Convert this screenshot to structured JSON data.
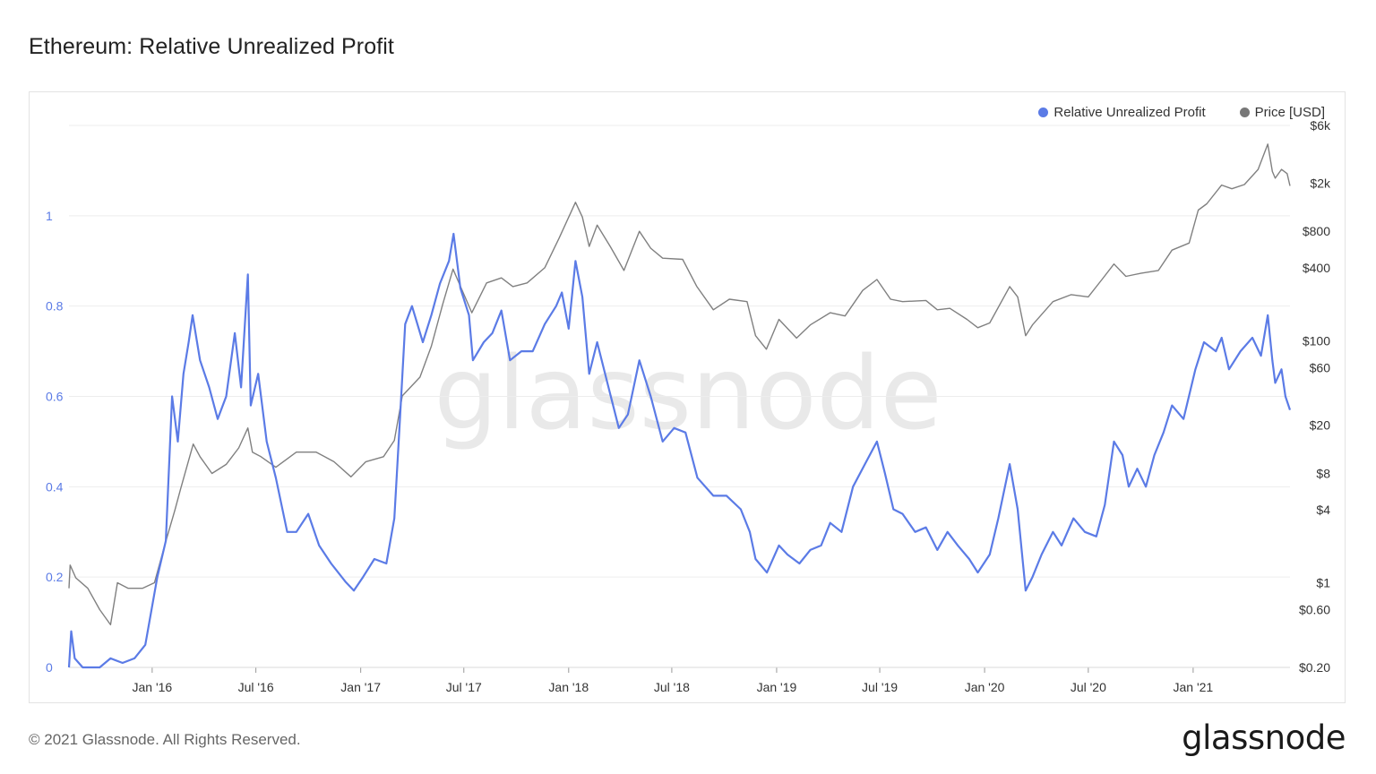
{
  "header": {
    "title": "Ethereum: Relative Unrealized Profit"
  },
  "footer": {
    "copyright": "© 2021 Glassnode. All Rights Reserved.",
    "brand": "glassnode"
  },
  "watermark": "glassnode",
  "colors": {
    "rup": "#5b7be6",
    "price": "#808080",
    "axis_left": "#5b7be6",
    "grid": "#ededed"
  },
  "chart_data": {
    "type": "line",
    "title": "Ethereum: Relative Unrealized Profit",
    "legend_position": "top-right",
    "grid": true,
    "x_ticks": [
      "Jan '16",
      "Jul '16",
      "Jan '17",
      "Jul '17",
      "Jan '18",
      "Jul '18",
      "Jan '19",
      "Jul '19",
      "Jan '20",
      "Jul '20",
      "Jan '21"
    ],
    "x_range": [
      "2015-08-08",
      "2021-06-20"
    ],
    "y_left": {
      "ticks": [
        "0",
        "0.2",
        "0.4",
        "0.6",
        "0.8",
        "1"
      ],
      "range": [
        0,
        1.2
      ]
    },
    "y_right": {
      "scale": "log",
      "ticks": [
        "$0.20",
        "$0.60",
        "$1",
        "$4",
        "$8",
        "$20",
        "$60",
        "$100",
        "$400",
        "$800",
        "$2k",
        "$6k"
      ],
      "range": [
        0.2,
        6000
      ]
    },
    "series": [
      {
        "name": "Relative Unrealized Profit",
        "axis": "left",
        "points": [
          [
            "2015-08-08",
            0.0
          ],
          [
            "2015-08-12",
            0.08
          ],
          [
            "2015-08-18",
            0.02
          ],
          [
            "2015-09-01",
            0.0
          ],
          [
            "2015-10-01",
            0.0
          ],
          [
            "2015-10-20",
            0.02
          ],
          [
            "2015-11-10",
            0.01
          ],
          [
            "2015-12-01",
            0.02
          ],
          [
            "2015-12-20",
            0.05
          ],
          [
            "2016-01-10",
            0.2
          ],
          [
            "2016-01-25",
            0.28
          ],
          [
            "2016-02-05",
            0.6
          ],
          [
            "2016-02-15",
            0.5
          ],
          [
            "2016-02-25",
            0.65
          ],
          [
            "2016-03-05",
            0.72
          ],
          [
            "2016-03-12",
            0.78
          ],
          [
            "2016-03-25",
            0.68
          ],
          [
            "2016-04-10",
            0.62
          ],
          [
            "2016-04-25",
            0.55
          ],
          [
            "2016-05-10",
            0.6
          ],
          [
            "2016-05-25",
            0.74
          ],
          [
            "2016-06-05",
            0.62
          ],
          [
            "2016-06-17",
            0.87
          ],
          [
            "2016-06-22",
            0.58
          ],
          [
            "2016-07-05",
            0.65
          ],
          [
            "2016-07-20",
            0.5
          ],
          [
            "2016-08-05",
            0.42
          ],
          [
            "2016-08-25",
            0.3
          ],
          [
            "2016-09-10",
            0.3
          ],
          [
            "2016-10-01",
            0.34
          ],
          [
            "2016-10-20",
            0.27
          ],
          [
            "2016-11-10",
            0.23
          ],
          [
            "2016-12-05",
            0.19
          ],
          [
            "2016-12-20",
            0.17
          ],
          [
            "2017-01-05",
            0.2
          ],
          [
            "2017-01-25",
            0.24
          ],
          [
            "2017-02-15",
            0.23
          ],
          [
            "2017-03-01",
            0.33
          ],
          [
            "2017-03-10",
            0.53
          ],
          [
            "2017-03-20",
            0.76
          ],
          [
            "2017-04-01",
            0.8
          ],
          [
            "2017-04-20",
            0.72
          ],
          [
            "2017-05-05",
            0.78
          ],
          [
            "2017-05-20",
            0.85
          ],
          [
            "2017-06-05",
            0.9
          ],
          [
            "2017-06-13",
            0.96
          ],
          [
            "2017-06-25",
            0.84
          ],
          [
            "2017-07-10",
            0.78
          ],
          [
            "2017-07-17",
            0.68
          ],
          [
            "2017-08-05",
            0.72
          ],
          [
            "2017-08-20",
            0.74
          ],
          [
            "2017-09-05",
            0.79
          ],
          [
            "2017-09-20",
            0.68
          ],
          [
            "2017-10-10",
            0.7
          ],
          [
            "2017-10-30",
            0.7
          ],
          [
            "2017-11-20",
            0.76
          ],
          [
            "2017-12-10",
            0.8
          ],
          [
            "2017-12-20",
            0.83
          ],
          [
            "2018-01-01",
            0.75
          ],
          [
            "2018-01-13",
            0.9
          ],
          [
            "2018-01-25",
            0.82
          ],
          [
            "2018-02-06",
            0.65
          ],
          [
            "2018-02-20",
            0.72
          ],
          [
            "2018-03-10",
            0.63
          ],
          [
            "2018-03-30",
            0.53
          ],
          [
            "2018-04-15",
            0.56
          ],
          [
            "2018-05-05",
            0.68
          ],
          [
            "2018-05-25",
            0.6
          ],
          [
            "2018-06-15",
            0.5
          ],
          [
            "2018-07-05",
            0.53
          ],
          [
            "2018-07-25",
            0.52
          ],
          [
            "2018-08-15",
            0.42
          ],
          [
            "2018-09-12",
            0.38
          ],
          [
            "2018-10-05",
            0.38
          ],
          [
            "2018-10-30",
            0.35
          ],
          [
            "2018-11-15",
            0.3
          ],
          [
            "2018-11-25",
            0.24
          ],
          [
            "2018-12-15",
            0.21
          ],
          [
            "2019-01-05",
            0.27
          ],
          [
            "2019-01-20",
            0.25
          ],
          [
            "2019-02-10",
            0.23
          ],
          [
            "2019-03-01",
            0.26
          ],
          [
            "2019-03-20",
            0.27
          ],
          [
            "2019-04-05",
            0.32
          ],
          [
            "2019-04-25",
            0.3
          ],
          [
            "2019-05-15",
            0.4
          ],
          [
            "2019-06-05",
            0.45
          ],
          [
            "2019-06-26",
            0.5
          ],
          [
            "2019-07-10",
            0.43
          ],
          [
            "2019-07-25",
            0.35
          ],
          [
            "2019-08-10",
            0.34
          ],
          [
            "2019-09-01",
            0.3
          ],
          [
            "2019-09-20",
            0.31
          ],
          [
            "2019-10-10",
            0.26
          ],
          [
            "2019-10-28",
            0.3
          ],
          [
            "2019-11-15",
            0.27
          ],
          [
            "2019-12-05",
            0.24
          ],
          [
            "2019-12-20",
            0.21
          ],
          [
            "2020-01-10",
            0.25
          ],
          [
            "2020-01-25",
            0.33
          ],
          [
            "2020-02-14",
            0.45
          ],
          [
            "2020-02-28",
            0.35
          ],
          [
            "2020-03-13",
            0.17
          ],
          [
            "2020-03-25",
            0.2
          ],
          [
            "2020-04-10",
            0.25
          ],
          [
            "2020-04-30",
            0.3
          ],
          [
            "2020-05-15",
            0.27
          ],
          [
            "2020-06-05",
            0.33
          ],
          [
            "2020-06-25",
            0.3
          ],
          [
            "2020-07-15",
            0.29
          ],
          [
            "2020-07-30",
            0.36
          ],
          [
            "2020-08-15",
            0.5
          ],
          [
            "2020-08-30",
            0.47
          ],
          [
            "2020-09-10",
            0.4
          ],
          [
            "2020-09-25",
            0.44
          ],
          [
            "2020-10-10",
            0.4
          ],
          [
            "2020-10-25",
            0.47
          ],
          [
            "2020-11-10",
            0.52
          ],
          [
            "2020-11-25",
            0.58
          ],
          [
            "2020-12-15",
            0.55
          ],
          [
            "2021-01-05",
            0.66
          ],
          [
            "2021-01-20",
            0.72
          ],
          [
            "2021-02-10",
            0.7
          ],
          [
            "2021-02-20",
            0.73
          ],
          [
            "2021-03-05",
            0.66
          ],
          [
            "2021-03-25",
            0.7
          ],
          [
            "2021-04-15",
            0.73
          ],
          [
            "2021-04-30",
            0.69
          ],
          [
            "2021-05-12",
            0.78
          ],
          [
            "2021-05-20",
            0.68
          ],
          [
            "2021-05-25",
            0.63
          ],
          [
            "2021-06-05",
            0.66
          ],
          [
            "2021-06-12",
            0.6
          ],
          [
            "2021-06-20",
            0.57
          ]
        ]
      },
      {
        "name": "Price [USD]",
        "axis": "right",
        "points": [
          [
            "2015-08-08",
            0.9
          ],
          [
            "2015-08-10",
            1.4
          ],
          [
            "2015-08-20",
            1.1
          ],
          [
            "2015-09-10",
            0.9
          ],
          [
            "2015-10-01",
            0.6
          ],
          [
            "2015-10-20",
            0.45
          ],
          [
            "2015-11-01",
            1.0
          ],
          [
            "2015-11-20",
            0.9
          ],
          [
            "2015-12-15",
            0.9
          ],
          [
            "2016-01-05",
            1.0
          ],
          [
            "2016-01-25",
            2.2
          ],
          [
            "2016-02-10",
            4.0
          ],
          [
            "2016-02-20",
            6.0
          ],
          [
            "2016-03-13",
            14.0
          ],
          [
            "2016-03-25",
            11.0
          ],
          [
            "2016-04-15",
            8.0
          ],
          [
            "2016-05-10",
            9.5
          ],
          [
            "2016-06-01",
            13.0
          ],
          [
            "2016-06-17",
            19.0
          ],
          [
            "2016-06-25",
            12.0
          ],
          [
            "2016-07-10",
            11.0
          ],
          [
            "2016-08-05",
            9.0
          ],
          [
            "2016-09-10",
            12.0
          ],
          [
            "2016-10-15",
            12.0
          ],
          [
            "2016-11-15",
            10.0
          ],
          [
            "2016-12-15",
            7.5
          ],
          [
            "2017-01-10",
            10.0
          ],
          [
            "2017-02-10",
            11.0
          ],
          [
            "2017-03-01",
            15.0
          ],
          [
            "2017-03-15",
            35.0
          ],
          [
            "2017-04-15",
            50.0
          ],
          [
            "2017-05-05",
            90.0
          ],
          [
            "2017-05-25",
            200.0
          ],
          [
            "2017-06-12",
            390.0
          ],
          [
            "2017-07-15",
            170.0
          ],
          [
            "2017-08-10",
            300.0
          ],
          [
            "2017-09-05",
            330.0
          ],
          [
            "2017-09-25",
            280.0
          ],
          [
            "2017-10-20",
            300.0
          ],
          [
            "2017-11-20",
            400.0
          ],
          [
            "2017-12-15",
            700.0
          ],
          [
            "2018-01-13",
            1390.0
          ],
          [
            "2018-01-25",
            1050.0
          ],
          [
            "2018-02-06",
            600.0
          ],
          [
            "2018-02-20",
            900.0
          ],
          [
            "2018-03-15",
            600.0
          ],
          [
            "2018-04-08",
            380.0
          ],
          [
            "2018-05-05",
            800.0
          ],
          [
            "2018-05-25",
            580.0
          ],
          [
            "2018-06-15",
            480.0
          ],
          [
            "2018-07-20",
            470.0
          ],
          [
            "2018-08-14",
            280.0
          ],
          [
            "2018-09-12",
            180.0
          ],
          [
            "2018-10-10",
            220.0
          ],
          [
            "2018-11-10",
            210.0
          ],
          [
            "2018-11-25",
            110.0
          ],
          [
            "2018-12-14",
            85.0
          ],
          [
            "2019-01-05",
            150.0
          ],
          [
            "2019-02-05",
            105.0
          ],
          [
            "2019-03-01",
            135.0
          ],
          [
            "2019-04-05",
            170.0
          ],
          [
            "2019-05-01",
            160.0
          ],
          [
            "2019-06-01",
            260.0
          ],
          [
            "2019-06-26",
            320.0
          ],
          [
            "2019-07-20",
            220.0
          ],
          [
            "2019-08-10",
            210.0
          ],
          [
            "2019-09-20",
            215.0
          ],
          [
            "2019-10-10",
            180.0
          ],
          [
            "2019-11-01",
            185.0
          ],
          [
            "2019-12-01",
            150.0
          ],
          [
            "2019-12-20",
            128.0
          ],
          [
            "2020-01-10",
            140.0
          ],
          [
            "2020-02-14",
            280.0
          ],
          [
            "2020-02-28",
            230.0
          ],
          [
            "2020-03-13",
            110.0
          ],
          [
            "2020-03-25",
            135.0
          ],
          [
            "2020-04-30",
            210.0
          ],
          [
            "2020-06-01",
            240.0
          ],
          [
            "2020-07-01",
            230.0
          ],
          [
            "2020-07-25",
            320.0
          ],
          [
            "2020-08-15",
            430.0
          ],
          [
            "2020-09-05",
            340.0
          ],
          [
            "2020-10-01",
            360.0
          ],
          [
            "2020-11-01",
            380.0
          ],
          [
            "2020-11-25",
            560.0
          ],
          [
            "2020-12-25",
            640.0
          ],
          [
            "2021-01-10",
            1200.0
          ],
          [
            "2021-01-25",
            1350.0
          ],
          [
            "2021-02-20",
            1930.0
          ],
          [
            "2021-03-10",
            1800.0
          ],
          [
            "2021-04-01",
            1950.0
          ],
          [
            "2021-04-25",
            2600.0
          ],
          [
            "2021-05-12",
            4200.0
          ],
          [
            "2021-05-20",
            2500.0
          ],
          [
            "2021-05-25",
            2200.0
          ],
          [
            "2021-06-05",
            2600.0
          ],
          [
            "2021-06-15",
            2400.0
          ],
          [
            "2021-06-20",
            1900.0
          ]
        ]
      }
    ]
  }
}
